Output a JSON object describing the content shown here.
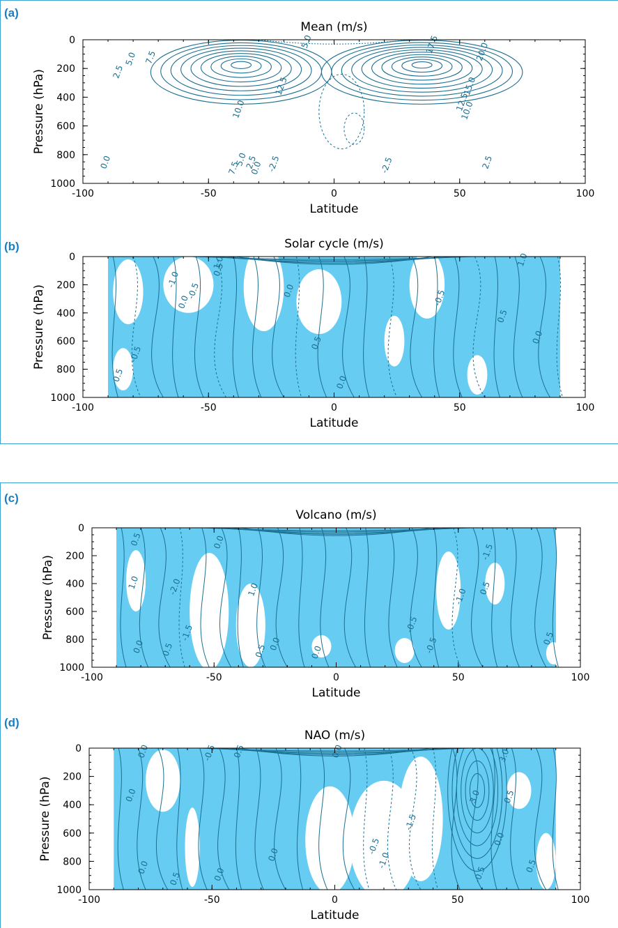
{
  "panel_labels": [
    "(a)",
    "(b)",
    "(c)",
    "(d)"
  ],
  "colors": {
    "frame": "#3aa3d4",
    "label": "#1a7fc0",
    "contour": "#1b6f91",
    "shade": "#66ccf2"
  },
  "chart_data": [
    {
      "type": "contour",
      "title": "Mean (m/s)",
      "xlabel": "Latitude",
      "ylabel": "Pressure (hPa)",
      "xlim": [
        -100,
        100
      ],
      "ylim": [
        1000,
        0
      ],
      "xticks": [
        "-100",
        "-50",
        "0",
        "50",
        "100"
      ],
      "yticks": [
        "0",
        "200",
        "400",
        "600",
        "800",
        "1000"
      ],
      "shaded": false,
      "features": [
        {
          "kind": "jet",
          "lat": -37,
          "p": 170,
          "max": 25,
          "levels": 9,
          "rx": 36,
          "ry": 165
        },
        {
          "kind": "jet",
          "lat": 35,
          "p": 170,
          "max": 27.5,
          "levels": 10,
          "rx": 40,
          "ry": 165
        }
      ],
      "contour_labels": [
        {
          "text": "2.5",
          "lat": -85,
          "p": 230
        },
        {
          "text": "5.0",
          "lat": -80,
          "p": 140
        },
        {
          "text": "7.5",
          "lat": -72,
          "p": 130
        },
        {
          "text": "0.0",
          "lat": -90,
          "p": 860
        },
        {
          "text": "10.0",
          "lat": -37,
          "p": 490
        },
        {
          "text": "12.5",
          "lat": -20,
          "p": 330
        },
        {
          "text": "7.5",
          "lat": -39,
          "p": 900
        },
        {
          "text": "5.0",
          "lat": -36,
          "p": 840
        },
        {
          "text": "2.5",
          "lat": -32,
          "p": 860
        },
        {
          "text": "0.0",
          "lat": -30,
          "p": 900
        },
        {
          "text": "-2.5",
          "lat": -23,
          "p": 870
        },
        {
          "text": "5.0",
          "lat": -10,
          "p": 20
        },
        {
          "text": "15.0",
          "lat": 55,
          "p": 330
        },
        {
          "text": "12.5",
          "lat": 52,
          "p": 440
        },
        {
          "text": "10.0",
          "lat": 54,
          "p": 500
        },
        {
          "text": "20.0",
          "lat": 60,
          "p": 90
        },
        {
          "text": "17.5",
          "lat": 40,
          "p": 40
        },
        {
          "text": "2.5",
          "lat": 62,
          "p": 860
        },
        {
          "text": "-2.5",
          "lat": 22,
          "p": 880
        }
      ]
    },
    {
      "type": "contour",
      "title": "Solar cycle (m/s)",
      "xlabel": "Latitude",
      "ylabel": "Pressure (hPa)",
      "xlim": [
        -100,
        100
      ],
      "ylim": [
        1000,
        0
      ],
      "xticks": [
        "-100",
        "-50",
        "0",
        "50",
        "100"
      ],
      "yticks": [
        "0",
        "200",
        "400",
        "600",
        "800",
        "1000"
      ],
      "shaded": true,
      "contour_labels": [
        {
          "text": "-1.0",
          "lat": -63,
          "p": 170
        },
        {
          "text": "-0.5",
          "lat": -55,
          "p": 250
        },
        {
          "text": "0.0",
          "lat": -59,
          "p": 330
        },
        {
          "text": "0.5",
          "lat": -45,
          "p": 100
        },
        {
          "text": "1.0",
          "lat": -45,
          "p": 50
        },
        {
          "text": "0.0",
          "lat": -17,
          "p": 250
        },
        {
          "text": "0.5",
          "lat": -6,
          "p": 620
        },
        {
          "text": "0.0",
          "lat": 4,
          "p": 900
        },
        {
          "text": "-0.5",
          "lat": 43,
          "p": 300
        },
        {
          "text": "0.5",
          "lat": 68,
          "p": 430
        },
        {
          "text": "0.0",
          "lat": 82,
          "p": 580
        },
        {
          "text": "1.0",
          "lat": 76,
          "p": 30
        },
        {
          "text": "0.5",
          "lat": -85,
          "p": 850
        },
        {
          "text": "-0.5",
          "lat": -78,
          "p": 700
        }
      ]
    },
    {
      "type": "contour",
      "title": "Volcano (m/s)",
      "xlabel": "Latitude",
      "ylabel": "Pressure (hPa)",
      "xlim": [
        -100,
        100
      ],
      "ylim": [
        1000,
        0
      ],
      "xticks": [
        "-100",
        "-50",
        "0",
        "50",
        "100"
      ],
      "yticks": [
        "0",
        "200",
        "400",
        "600",
        "800",
        "1000"
      ],
      "shaded": true,
      "contour_labels": [
        {
          "text": "0.5",
          "lat": -81,
          "p": 90
        },
        {
          "text": "1.0",
          "lat": -82,
          "p": 400
        },
        {
          "text": "0.0",
          "lat": -80,
          "p": 860
        },
        {
          "text": "-2.0",
          "lat": -65,
          "p": 430
        },
        {
          "text": "-1.5",
          "lat": -60,
          "p": 760
        },
        {
          "text": "0.5",
          "lat": -68,
          "p": 880
        },
        {
          "text": "1.0",
          "lat": -33,
          "p": 450
        },
        {
          "text": "0.5",
          "lat": -30,
          "p": 890
        },
        {
          "text": "0.0",
          "lat": -24,
          "p": 840
        },
        {
          "text": "0.0",
          "lat": -7,
          "p": 900
        },
        {
          "text": "-0.5",
          "lat": 32,
          "p": 700
        },
        {
          "text": "-1.0",
          "lat": 52,
          "p": 500
        },
        {
          "text": "0.5",
          "lat": 62,
          "p": 440
        },
        {
          "text": "-1.5",
          "lat": 63,
          "p": 180
        },
        {
          "text": "0.5",
          "lat": 88,
          "p": 800
        },
        {
          "text": "-0.5",
          "lat": 40,
          "p": 850
        },
        {
          "text": "0.0",
          "lat": -47,
          "p": 110
        }
      ]
    },
    {
      "type": "contour",
      "title": "NAO (m/s)",
      "xlabel": "Latitude",
      "ylabel": "Pressure (hPa)",
      "xlim": [
        -100,
        100
      ],
      "ylim": [
        1000,
        0
      ],
      "xticks": [
        "-100",
        "-50",
        "0",
        "50",
        "100"
      ],
      "yticks": [
        "0",
        "200",
        "400",
        "600",
        "800",
        "1000"
      ],
      "shaded": true,
      "contour_labels": [
        {
          "text": "0.0",
          "lat": -77,
          "p": 30
        },
        {
          "text": "-0.5",
          "lat": -50,
          "p": 40
        },
        {
          "text": "0.5",
          "lat": -38,
          "p": 30
        },
        {
          "text": "0.0",
          "lat": -82,
          "p": 340
        },
        {
          "text": "0.0",
          "lat": -77,
          "p": 850
        },
        {
          "text": "0.5",
          "lat": -64,
          "p": 930
        },
        {
          "text": "0.0",
          "lat": -46,
          "p": 900
        },
        {
          "text": "0.0",
          "lat": -24,
          "p": 760
        },
        {
          "text": "0.0",
          "lat": 2,
          "p": 30
        },
        {
          "text": "-1.0",
          "lat": 21,
          "p": 800
        },
        {
          "text": "-1.5",
          "lat": 32,
          "p": 530
        },
        {
          "text": "-0.5",
          "lat": 17,
          "p": 700
        },
        {
          "text": "3.0",
          "lat": 58,
          "p": 350
        },
        {
          "text": "3.0",
          "lat": 70,
          "p": 60
        },
        {
          "text": "0.5",
          "lat": 72,
          "p": 350
        },
        {
          "text": "0.0",
          "lat": 68,
          "p": 650
        },
        {
          "text": "-0.5",
          "lat": 60,
          "p": 900
        },
        {
          "text": "0.5",
          "lat": 81,
          "p": 840
        }
      ]
    }
  ]
}
